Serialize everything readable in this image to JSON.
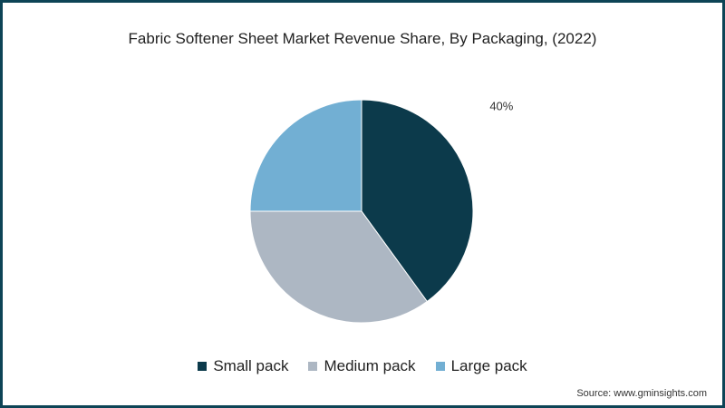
{
  "chart_data": {
    "type": "pie",
    "title": "Fabric Softener Sheet Market Revenue Share, By Packaging, (2022)",
    "categories": [
      "Small pack",
      "Medium pack",
      "Large pack"
    ],
    "values": [
      40,
      35,
      25
    ],
    "data_labels": [
      "40%",
      "",
      ""
    ],
    "colors": [
      "#0c3a4b",
      "#adb7c3",
      "#72afd3"
    ],
    "legend_position": "bottom"
  },
  "source": "Source: www.gminsights.com"
}
